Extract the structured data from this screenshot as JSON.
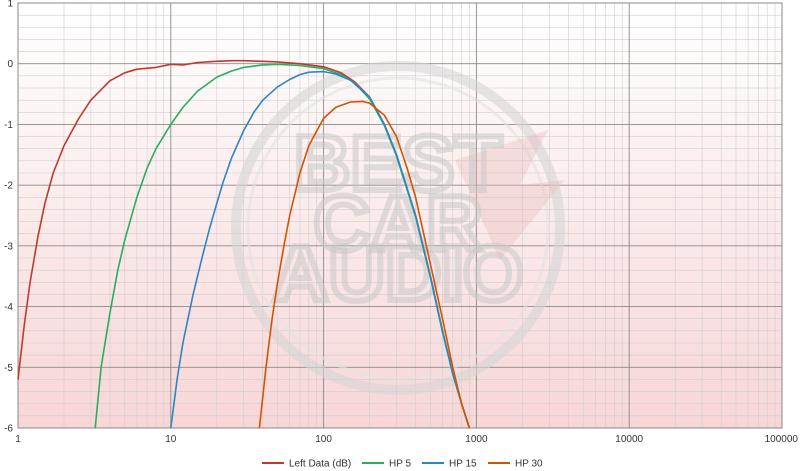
{
  "chart_data": {
    "type": "line",
    "title": "",
    "xlabel": "",
    "ylabel": "",
    "x_scale": "log",
    "xlim": [
      1,
      100000
    ],
    "ylim": [
      -6,
      1
    ],
    "x_tick_labels": [
      "1",
      "10",
      "100",
      "1000",
      "10000",
      "100000"
    ],
    "y_tick_labels": [
      "1",
      "0",
      "-1",
      "-2",
      "-3",
      "-4",
      "-5",
      "-6"
    ],
    "grid": true,
    "legend_position": "bottom",
    "series": [
      {
        "name": "Left Data (dB)",
        "color": "#c0392b",
        "x": [
          1,
          1.1,
          1.2,
          1.35,
          1.5,
          1.7,
          2,
          2.5,
          3,
          4,
          5,
          6,
          8,
          10,
          12,
          15,
          20,
          25,
          30,
          40,
          50,
          70,
          100,
          130,
          160,
          200,
          250,
          300,
          400,
          500,
          600,
          700,
          800,
          900
        ],
        "y": [
          -5.2,
          -4.3,
          -3.6,
          -2.85,
          -2.3,
          -1.8,
          -1.35,
          -0.9,
          -0.6,
          -0.28,
          -0.15,
          -0.09,
          -0.06,
          -0.01,
          -0.02,
          0.02,
          0.04,
          0.05,
          0.05,
          0.04,
          0.03,
          0.0,
          -0.05,
          -0.15,
          -0.3,
          -0.55,
          -1.0,
          -1.5,
          -2.5,
          -3.5,
          -4.4,
          -5.1,
          -5.6,
          -6.0
        ]
      },
      {
        "name": "HP 5",
        "color": "#27ae60",
        "x": [
          3.2,
          3.5,
          4,
          4.5,
          5,
          6,
          7,
          8,
          10,
          12,
          15,
          20,
          25,
          30,
          40,
          50,
          70,
          100,
          130,
          160,
          200,
          250,
          300,
          400,
          500,
          600,
          700,
          800,
          900
        ],
        "y": [
          -6.0,
          -5.0,
          -4.1,
          -3.4,
          -2.9,
          -2.2,
          -1.72,
          -1.4,
          -1.0,
          -0.72,
          -0.45,
          -0.22,
          -0.12,
          -0.06,
          -0.02,
          -0.01,
          -0.03,
          -0.08,
          -0.18,
          -0.32,
          -0.58,
          -1.02,
          -1.52,
          -2.52,
          -3.52,
          -4.42,
          -5.1,
          -5.6,
          -6.0
        ]
      },
      {
        "name": "HP 15",
        "color": "#2e86c1",
        "x": [
          10,
          11,
          12,
          14,
          16,
          18,
          20,
          22,
          25,
          30,
          35,
          40,
          50,
          60,
          70,
          80,
          100,
          120,
          150,
          200,
          250,
          300,
          400,
          500,
          600,
          700,
          800,
          900
        ],
        "y": [
          -6.0,
          -5.2,
          -4.6,
          -3.8,
          -3.2,
          -2.7,
          -2.3,
          -1.95,
          -1.55,
          -1.1,
          -0.8,
          -0.6,
          -0.38,
          -0.26,
          -0.18,
          -0.14,
          -0.13,
          -0.17,
          -0.27,
          -0.55,
          -1.0,
          -1.5,
          -2.5,
          -3.5,
          -4.4,
          -5.1,
          -5.6,
          -6.0
        ]
      },
      {
        "name": "HP 30",
        "color": "#d35400",
        "x": [
          38,
          42,
          46,
          50,
          55,
          60,
          70,
          80,
          100,
          120,
          150,
          180,
          200,
          250,
          300,
          350,
          400,
          500,
          600,
          700,
          800,
          900
        ],
        "y": [
          -6.0,
          -5.0,
          -4.2,
          -3.6,
          -3.0,
          -2.5,
          -1.8,
          -1.35,
          -0.9,
          -0.72,
          -0.63,
          -0.62,
          -0.65,
          -0.85,
          -1.2,
          -1.7,
          -2.2,
          -3.3,
          -4.2,
          -5.0,
          -5.6,
          -6.0
        ]
      }
    ]
  },
  "watermark": {
    "line1": "BEST",
    "line2": "CAR",
    "line3": "AUDIO"
  }
}
